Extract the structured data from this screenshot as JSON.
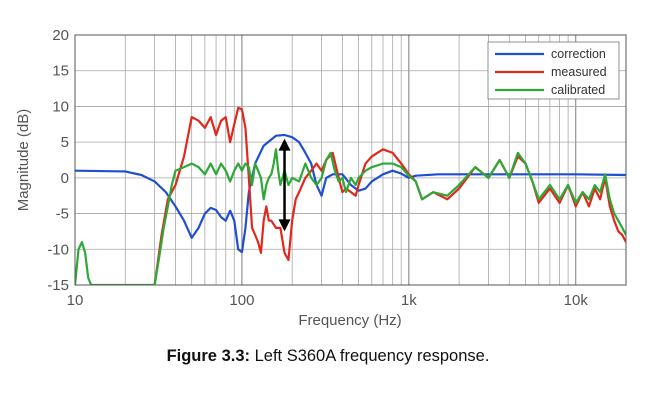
{
  "caption": {
    "label": "Figure 3.3:",
    "text": "Left S360A frequency response."
  },
  "chart_data": {
    "type": "line",
    "title": "",
    "xlabel": "Frequency (Hz)",
    "ylabel": "Magnitude (dB)",
    "xscale": "log",
    "xlim": [
      10,
      20000
    ],
    "ylim": [
      -15,
      20
    ],
    "xticks": [
      {
        "value": 10,
        "label": "10"
      },
      {
        "value": 100,
        "label": "100"
      },
      {
        "value": 1000,
        "label": "1k"
      },
      {
        "value": 10000,
        "label": "10k"
      }
    ],
    "yticks": [
      -15,
      -10,
      -5,
      0,
      5,
      10,
      15,
      20
    ],
    "grid": true,
    "legend_position": "top-right",
    "series": [
      {
        "name": "correction",
        "color": "#1f4fd0",
        "points": [
          [
            10,
            1
          ],
          [
            20,
            0.9
          ],
          [
            25,
            0.4
          ],
          [
            30,
            -0.5
          ],
          [
            35,
            -2
          ],
          [
            40,
            -4
          ],
          [
            45,
            -6
          ],
          [
            50,
            -8.4
          ],
          [
            55,
            -7
          ],
          [
            60,
            -5
          ],
          [
            65,
            -4.2
          ],
          [
            70,
            -4.5
          ],
          [
            75,
            -5.5
          ],
          [
            80,
            -6
          ],
          [
            85,
            -4.6
          ],
          [
            90,
            -6
          ],
          [
            95,
            -10
          ],
          [
            100,
            -10.4
          ],
          [
            105,
            -7
          ],
          [
            110,
            -2
          ],
          [
            120,
            2
          ],
          [
            135,
            4.5
          ],
          [
            160,
            5.9
          ],
          [
            180,
            6
          ],
          [
            200,
            5.7
          ],
          [
            220,
            5
          ],
          [
            240,
            3.5
          ],
          [
            260,
            2
          ],
          [
            280,
            -1
          ],
          [
            300,
            -2.5
          ],
          [
            320,
            0
          ],
          [
            350,
            0.5
          ],
          [
            400,
            0.5
          ],
          [
            450,
            -1
          ],
          [
            500,
            -1.8
          ],
          [
            550,
            -1.5
          ],
          [
            600,
            -0.5
          ],
          [
            700,
            0.5
          ],
          [
            800,
            1
          ],
          [
            900,
            0.6
          ],
          [
            1000,
            0
          ],
          [
            1100,
            0.3
          ],
          [
            1500,
            0.5
          ],
          [
            2000,
            0.5
          ],
          [
            5000,
            0.5
          ],
          [
            10000,
            0.5
          ],
          [
            20000,
            0.4
          ]
        ]
      },
      {
        "name": "measured",
        "color": "#e0281c",
        "points": [
          [
            30,
            -15
          ],
          [
            33,
            -8
          ],
          [
            36,
            -3
          ],
          [
            40,
            -1
          ],
          [
            45,
            3
          ],
          [
            50,
            8.5
          ],
          [
            55,
            8
          ],
          [
            60,
            7
          ],
          [
            65,
            8.5
          ],
          [
            70,
            6
          ],
          [
            75,
            8
          ],
          [
            80,
            8.5
          ],
          [
            85,
            5
          ],
          [
            90,
            7.5
          ],
          [
            95,
            9.8
          ],
          [
            100,
            9.6
          ],
          [
            105,
            7
          ],
          [
            110,
            0
          ],
          [
            115,
            -7
          ],
          [
            120,
            -8
          ],
          [
            125,
            -9
          ],
          [
            130,
            -10.5
          ],
          [
            135,
            -6
          ],
          [
            140,
            -4
          ],
          [
            145,
            -6
          ],
          [
            150,
            -6
          ],
          [
            160,
            -7
          ],
          [
            170,
            -7
          ],
          [
            180,
            -10.5
          ],
          [
            190,
            -11.5
          ],
          [
            200,
            -6
          ],
          [
            210,
            -3
          ],
          [
            220,
            -2
          ],
          [
            240,
            0
          ],
          [
            260,
            1
          ],
          [
            280,
            2
          ],
          [
            300,
            1
          ],
          [
            320,
            2.5
          ],
          [
            350,
            3.5
          ],
          [
            380,
            0
          ],
          [
            400,
            -2
          ],
          [
            420,
            -1.5
          ],
          [
            450,
            -2
          ],
          [
            480,
            -2.5
          ],
          [
            500,
            -1
          ],
          [
            550,
            2
          ],
          [
            600,
            3
          ],
          [
            700,
            4
          ],
          [
            800,
            3.5
          ],
          [
            900,
            2
          ],
          [
            1000,
            0.5
          ],
          [
            1100,
            -0.5
          ],
          [
            1200,
            -3
          ],
          [
            1400,
            -2
          ],
          [
            1700,
            -3
          ],
          [
            2000,
            -1.5
          ],
          [
            2500,
            1.5
          ],
          [
            3000,
            0
          ],
          [
            3500,
            2.5
          ],
          [
            4000,
            0
          ],
          [
            4500,
            3
          ],
          [
            5000,
            2
          ],
          [
            5500,
            -0.5
          ],
          [
            6000,
            -3.5
          ],
          [
            7000,
            -1.5
          ],
          [
            8000,
            -3.5
          ],
          [
            9000,
            -1
          ],
          [
            10000,
            -4
          ],
          [
            11000,
            -2
          ],
          [
            12000,
            -4
          ],
          [
            13000,
            -1.5
          ],
          [
            14000,
            -3
          ],
          [
            15000,
            0
          ],
          [
            16000,
            -4
          ],
          [
            17000,
            -6
          ],
          [
            18000,
            -7.5
          ],
          [
            19000,
            -8
          ],
          [
            20000,
            -9
          ]
        ]
      },
      {
        "name": "calibrated",
        "color": "#2ea836",
        "points": [
          [
            10,
            -15
          ],
          [
            10.5,
            -10
          ],
          [
            11,
            -9
          ],
          [
            11.5,
            -10.5
          ],
          [
            12,
            -14
          ],
          [
            12.5,
            -15
          ],
          [
            30,
            -15
          ],
          [
            32,
            -11
          ],
          [
            34,
            -7
          ],
          [
            36,
            -4
          ],
          [
            38,
            -1
          ],
          [
            40,
            1
          ],
          [
            45,
            1.5
          ],
          [
            50,
            2
          ],
          [
            55,
            1.5
          ],
          [
            60,
            0.5
          ],
          [
            65,
            2
          ],
          [
            70,
            0.5
          ],
          [
            75,
            2
          ],
          [
            80,
            1
          ],
          [
            85,
            -0.5
          ],
          [
            90,
            1
          ],
          [
            95,
            2
          ],
          [
            100,
            1
          ],
          [
            105,
            2
          ],
          [
            110,
            1.5
          ],
          [
            115,
            -1
          ],
          [
            120,
            2
          ],
          [
            125,
            1
          ],
          [
            130,
            0
          ],
          [
            135,
            -3
          ],
          [
            140,
            -1
          ],
          [
            145,
            0
          ],
          [
            150,
            0.5
          ],
          [
            155,
            2
          ],
          [
            160,
            4
          ],
          [
            165,
            1
          ],
          [
            170,
            -1
          ],
          [
            175,
            0
          ],
          [
            180,
            1
          ],
          [
            190,
            -1
          ],
          [
            200,
            0
          ],
          [
            220,
            -0.5
          ],
          [
            240,
            2
          ],
          [
            260,
            0
          ],
          [
            280,
            -1
          ],
          [
            300,
            0
          ],
          [
            320,
            2.5
          ],
          [
            340,
            3.5
          ],
          [
            360,
            1
          ],
          [
            380,
            -0.5
          ],
          [
            400,
            0
          ],
          [
            420,
            -2
          ],
          [
            450,
            0
          ],
          [
            480,
            -1
          ],
          [
            500,
            0
          ],
          [
            550,
            1
          ],
          [
            600,
            1.5
          ],
          [
            700,
            2
          ],
          [
            800,
            2
          ],
          [
            900,
            1.5
          ],
          [
            1000,
            0.3
          ],
          [
            1100,
            -0.5
          ],
          [
            1200,
            -3
          ],
          [
            1400,
            -2
          ],
          [
            1700,
            -2.5
          ],
          [
            2000,
            -1
          ],
          [
            2500,
            1.5
          ],
          [
            3000,
            0
          ],
          [
            3500,
            2.5
          ],
          [
            4000,
            0
          ],
          [
            4500,
            3.5
          ],
          [
            5000,
            2
          ],
          [
            5500,
            -0.5
          ],
          [
            6000,
            -3
          ],
          [
            7000,
            -1
          ],
          [
            8000,
            -3
          ],
          [
            9000,
            -1
          ],
          [
            10000,
            -3.5
          ],
          [
            11000,
            -2
          ],
          [
            12000,
            -3
          ],
          [
            13000,
            -1
          ],
          [
            14000,
            -2
          ],
          [
            15000,
            0.5
          ],
          [
            16000,
            -3
          ],
          [
            17000,
            -5
          ],
          [
            18000,
            -6
          ],
          [
            19000,
            -7
          ],
          [
            20000,
            -8
          ]
        ]
      }
    ],
    "annotation": {
      "type": "double-arrow",
      "x": 180,
      "y_from": 5.5,
      "y_to": -7.5
    }
  }
}
